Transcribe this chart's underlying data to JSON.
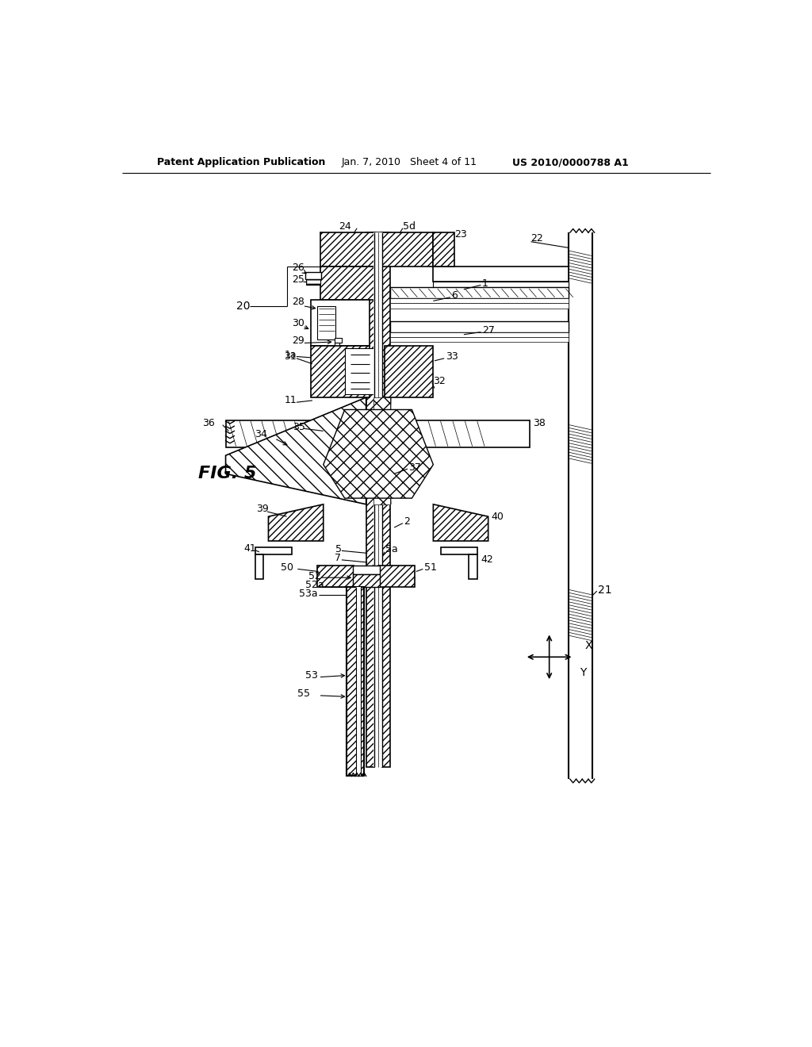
{
  "header_left": "Patent Application Publication",
  "header_center": "Jan. 7, 2010   Sheet 4 of 11",
  "header_right": "US 2010/0000788 A1",
  "fig_label": "FIG. 5",
  "background_color": "#ffffff"
}
